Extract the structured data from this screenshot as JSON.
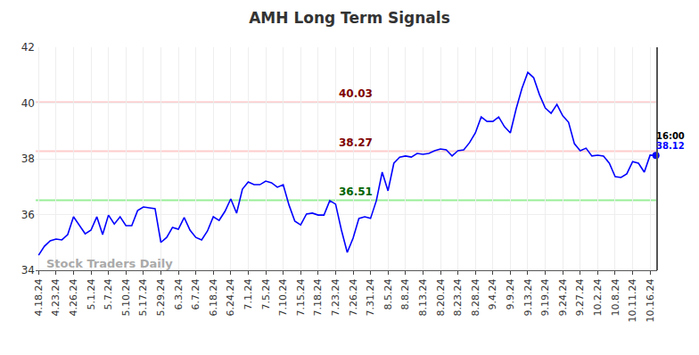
{
  "chart_data": {
    "type": "line",
    "title": "AMH Long Term Signals",
    "categories": [
      "4.18.24",
      null,
      null,
      "4.23.24",
      null,
      null,
      "4.26.24",
      null,
      null,
      "5.1.24",
      null,
      null,
      "5.7.24",
      null,
      null,
      "5.10.24",
      null,
      null,
      "5.17.24",
      null,
      null,
      "5.29.24",
      null,
      null,
      "6.3.24",
      null,
      null,
      "6.7.24",
      null,
      null,
      "6.18.24",
      null,
      null,
      "6.24.24",
      null,
      null,
      "7.1.24",
      null,
      null,
      "7.5.24",
      null,
      null,
      "7.10.24",
      null,
      null,
      "7.15.24",
      null,
      null,
      "7.18.24",
      null,
      null,
      "7.23.24",
      null,
      null,
      "7.26.24",
      null,
      null,
      "7.31.24",
      null,
      null,
      "8.5.24",
      null,
      null,
      "8.8.24",
      null,
      null,
      "8.13.24",
      null,
      null,
      "8.20.24",
      null,
      null,
      "8.23.24",
      null,
      null,
      "8.28.24",
      null,
      null,
      "9.4.24",
      null,
      null,
      "9.9.24",
      null,
      null,
      "9.13.24",
      null,
      null,
      "9.19.24",
      null,
      null,
      "9.24.24",
      null,
      null,
      "9.27.24",
      null,
      null,
      "10.2.24",
      null,
      null,
      "10.8.24",
      null,
      null,
      "10.11.24",
      null,
      null,
      "10.16.24",
      null
    ],
    "values": [
      34.54,
      34.86,
      35.06,
      35.12,
      35.09,
      35.28,
      35.92,
      35.63,
      35.31,
      35.44,
      35.92,
      35.28,
      35.98,
      35.66,
      35.92,
      35.6,
      35.6,
      36.14,
      36.27,
      36.24,
      36.21,
      35.0,
      35.18,
      35.54,
      35.47,
      35.89,
      35.44,
      35.18,
      35.09,
      35.41,
      35.92,
      35.79,
      36.11,
      36.56,
      36.05,
      36.91,
      37.17,
      37.07,
      37.07,
      37.2,
      37.14,
      36.98,
      37.07,
      36.34,
      35.76,
      35.63,
      36.02,
      36.05,
      35.98,
      35.98,
      36.5,
      36.37,
      35.44,
      34.64,
      35.15,
      35.86,
      35.92,
      35.86,
      36.5,
      37.52,
      36.85,
      37.84,
      38.06,
      38.1,
      38.06,
      38.19,
      38.16,
      38.19,
      38.29,
      38.35,
      38.32,
      38.1,
      38.29,
      38.32,
      38.58,
      38.93,
      39.5,
      39.34,
      39.34,
      39.5,
      39.15,
      38.93,
      39.79,
      40.53,
      41.1,
      40.91,
      40.3,
      39.82,
      39.63,
      39.95,
      39.54,
      39.31,
      38.54,
      38.29,
      38.38,
      38.1,
      38.13,
      38.1,
      37.84,
      37.36,
      37.33,
      37.46,
      37.9,
      37.84,
      37.52,
      38.13,
      38.12
    ],
    "color": "#0000ff",
    "ylim": [
      34,
      42
    ],
    "yticks": [
      34,
      36,
      38,
      40,
      42
    ],
    "grid": true,
    "levels": [
      {
        "value": 40.03,
        "label": "40.03",
        "color": "#ffcccc",
        "label_color": "#800000"
      },
      {
        "value": 38.27,
        "label": "38.27",
        "color": "#ffcccc",
        "label_color": "#800000"
      },
      {
        "value": 36.51,
        "label": "36.51",
        "color": "#99ee99",
        "label_color": "#006400"
      }
    ],
    "time_label": "16:00",
    "watermark": "Stock Traders Daily"
  }
}
